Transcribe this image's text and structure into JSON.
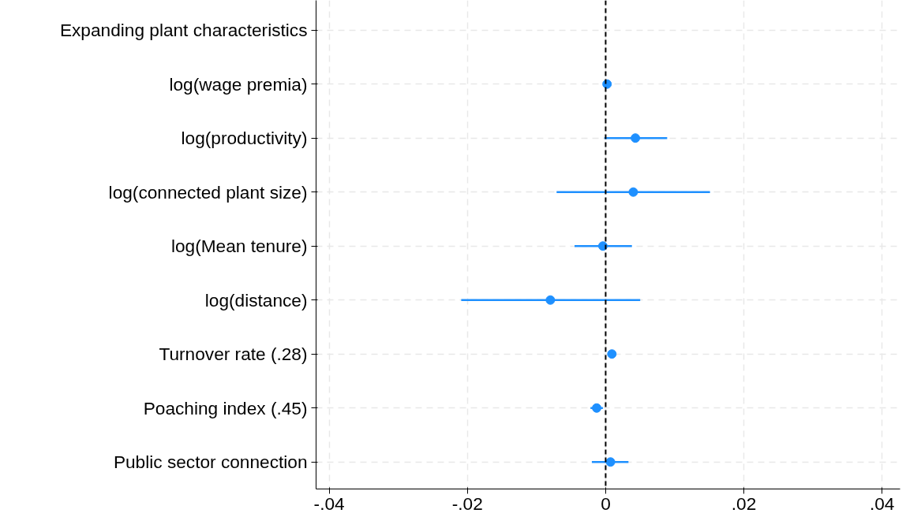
{
  "chart_data": {
    "type": "scatter",
    "orientation": "horizontal",
    "categories": [
      "Expanding plant characteristics",
      "log(wage premia)",
      "log(productivity)",
      "log(connected plant size)",
      "log(Mean tenure)",
      "log(distance)",
      "Turnover rate (.28)",
      "Poaching index (.45)",
      "Public sector connection"
    ],
    "values": [
      null,
      0.0002,
      0.0043,
      0.004,
      -0.0004,
      -0.008,
      0.0009,
      -0.0013,
      0.0007
    ],
    "errors": [
      null,
      null,
      [
        -0.0002,
        0.0089
      ],
      [
        -0.0071,
        0.0151
      ],
      [
        -0.0045,
        0.0038
      ],
      [
        -0.0209,
        0.005
      ],
      null,
      [
        -0.0022,
        -0.0004
      ],
      [
        -0.002,
        0.0033
      ]
    ],
    "color": "#1e90ff",
    "marker": "circle",
    "xlim": [
      -0.0419,
      0.0426
    ],
    "xticks": [
      {
        "value": -0.04,
        "label": "-.04"
      },
      {
        "value": -0.02,
        "label": "-.02"
      },
      0,
      {
        "value": 0.02,
        "label": ".02"
      },
      {
        "value": 0.04,
        "label": ".04"
      }
    ],
    "grid": true,
    "ref_lines": [
      {
        "axis": "x",
        "value": 0,
        "color": "#000000",
        "line_style": "dashed"
      }
    ]
  }
}
